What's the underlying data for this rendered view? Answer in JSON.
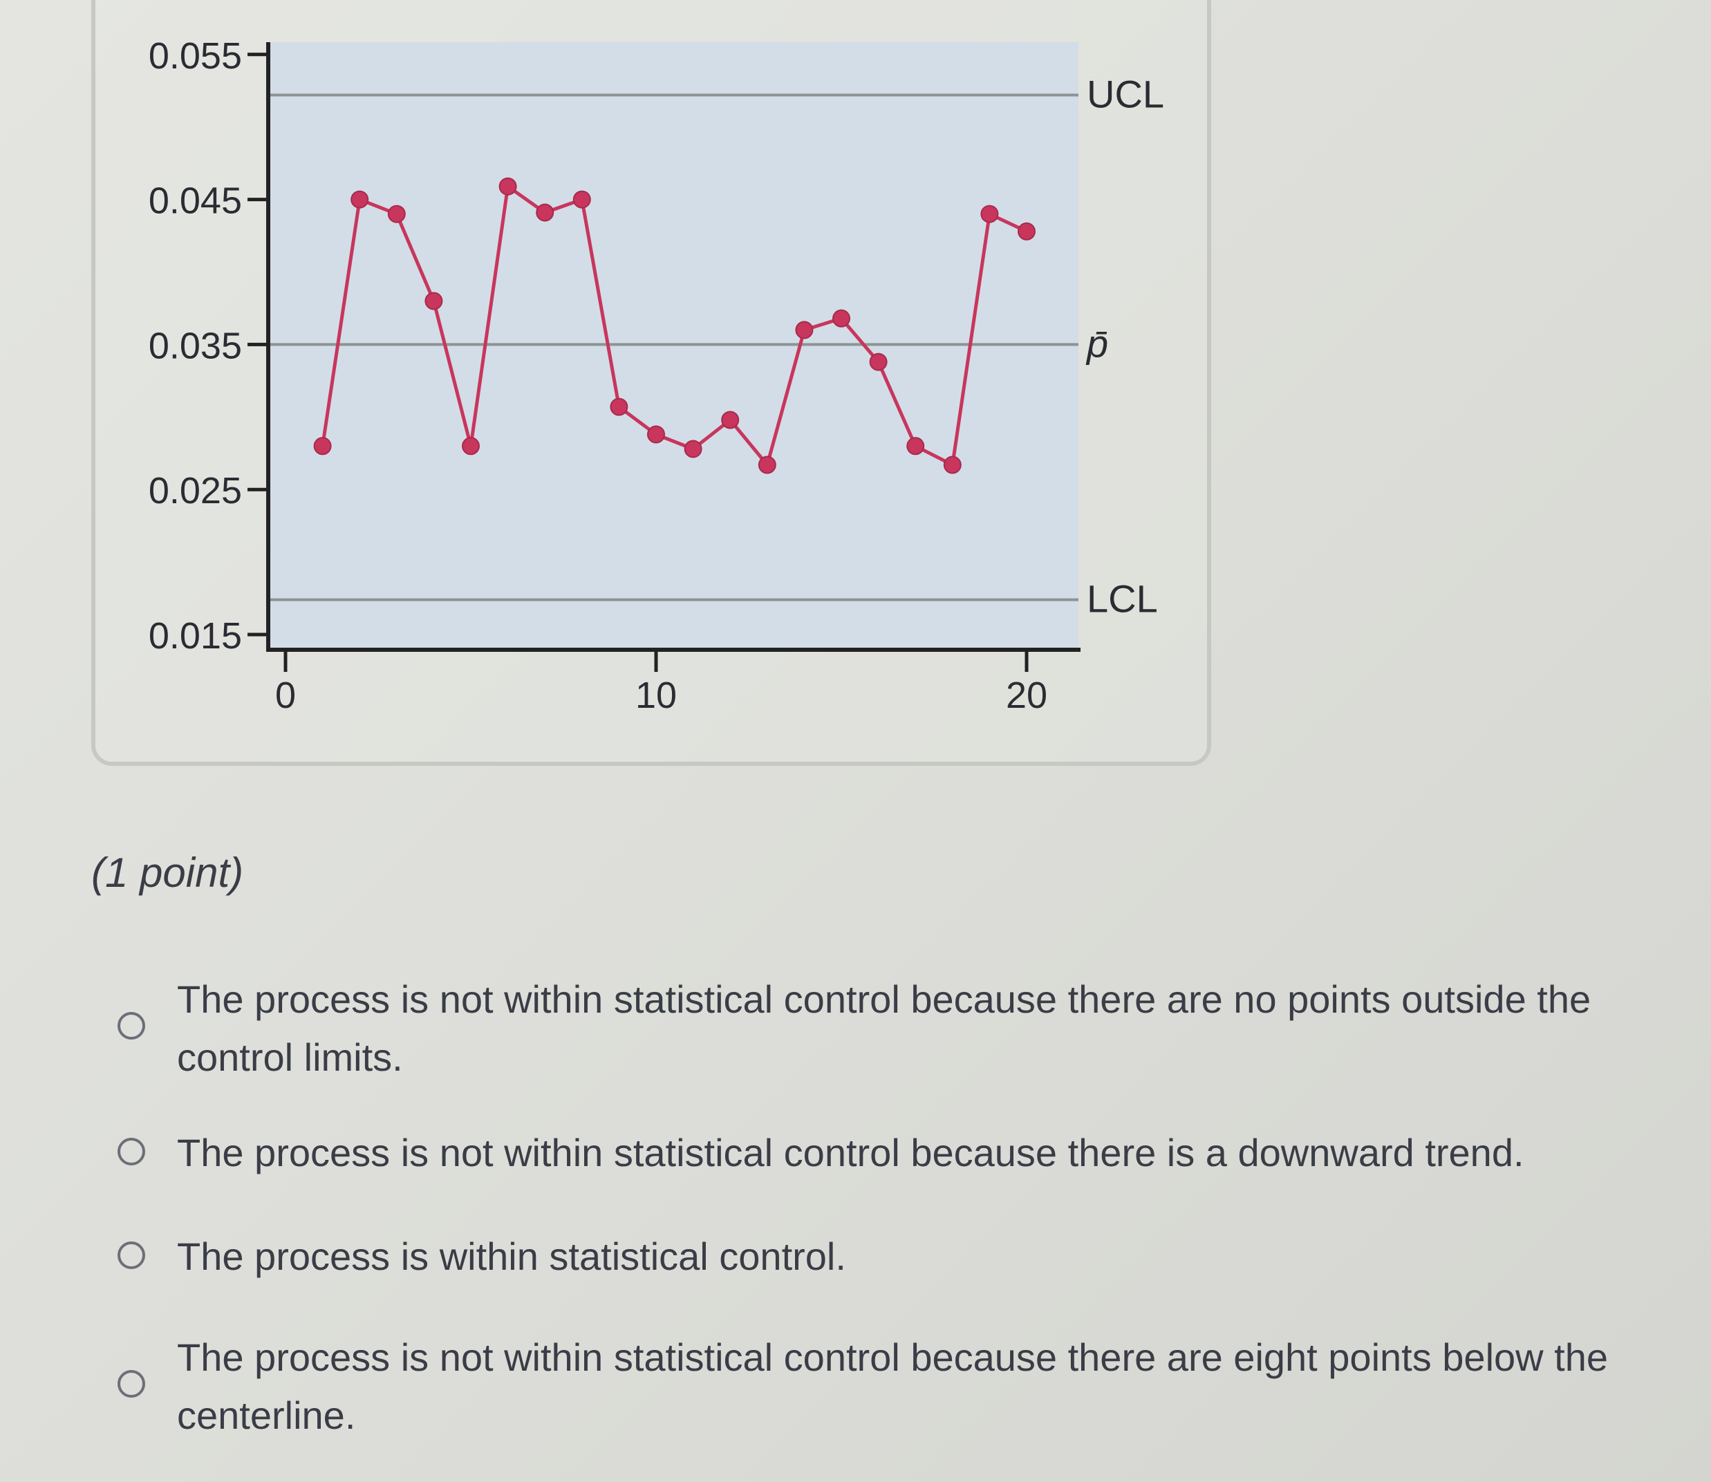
{
  "chart_data": {
    "type": "line",
    "x": [
      1,
      2,
      3,
      4,
      5,
      6,
      7,
      8,
      9,
      10,
      11,
      12,
      13,
      14,
      15,
      16,
      17,
      18,
      19,
      20
    ],
    "series": [
      {
        "values": [
          0.028,
          0.045,
          0.044,
          0.038,
          0.028,
          0.0459,
          0.0441,
          0.045,
          0.0307,
          0.0288,
          0.0278,
          0.0298,
          0.0267,
          0.036,
          0.0368,
          0.0338,
          0.028,
          0.0267,
          0.044,
          0.0428
        ]
      }
    ],
    "reference_lines": [
      {
        "label": "UCL",
        "value": 0.0522
      },
      {
        "label": "p̄",
        "value": 0.035
      },
      {
        "label": "LCL",
        "value": 0.0174
      }
    ],
    "yticks": [
      "0.055",
      "0.045",
      "0.035",
      "0.025",
      "0.015"
    ],
    "xticks": [
      "0",
      "10",
      "20"
    ],
    "xlim": [
      0,
      21
    ],
    "ylim": [
      0.015,
      0.0555
    ],
    "grid": false,
    "colors": {
      "line": "#c8365d",
      "plot_background": "#d3dde7",
      "reference_line": "#8d9396"
    }
  },
  "question": {
    "points_label": "(1 point)"
  },
  "options": [
    {
      "text": "The process is not within statistical control because there are no points outside the control limits."
    },
    {
      "text": "The process is not within statistical control because there is a downward trend."
    },
    {
      "text": "The process is within statistical control."
    },
    {
      "text": "The process is not within statistical control because there are eight points below the centerline."
    }
  ]
}
